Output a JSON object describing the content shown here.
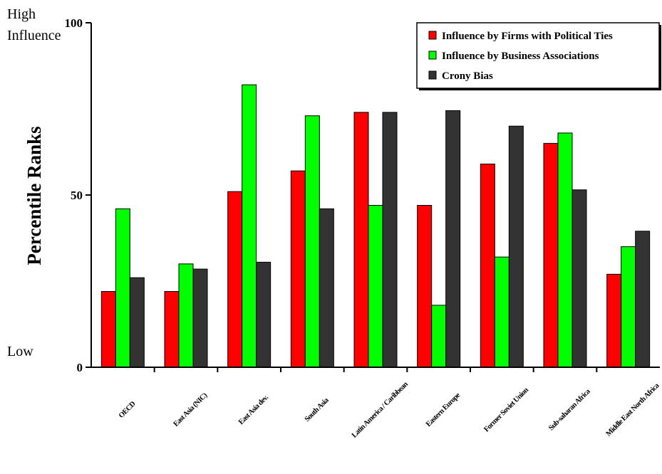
{
  "chart_data": {
    "type": "bar",
    "categories": [
      "OECD",
      "East Asia (NIC)",
      "East Asia dev.",
      "South Asia",
      "Latin America / Caribbean",
      "Eastern Europe",
      "Former Soviet Union",
      "Sub-saharan Africa",
      "Middle East North Africa"
    ],
    "series": [
      {
        "name": "Influence by Firms with Political Ties",
        "color": "#ff0000",
        "values": [
          22,
          22,
          51,
          57,
          74,
          47,
          59,
          65,
          27
        ]
      },
      {
        "name": "Influence by Business Associations",
        "color": "#00ff00",
        "values": [
          46,
          30,
          82,
          73,
          47,
          18,
          32,
          68,
          35
        ]
      },
      {
        "name": "Crony Bias",
        "color": "#333333",
        "values": [
          26,
          28.5,
          30.5,
          46,
          74,
          74.5,
          70,
          51.5,
          39.5
        ]
      }
    ],
    "title": "",
    "xlabel": "",
    "ylabel": "Percentile Ranks",
    "ylim": [
      0,
      100
    ],
    "yticks": [
      "0",
      "50",
      "100"
    ],
    "y_corner_labels": {
      "high_line1": "High",
      "high_line2": "Influence",
      "low": "Low"
    },
    "legend_position": "top-right",
    "grid": false
  }
}
